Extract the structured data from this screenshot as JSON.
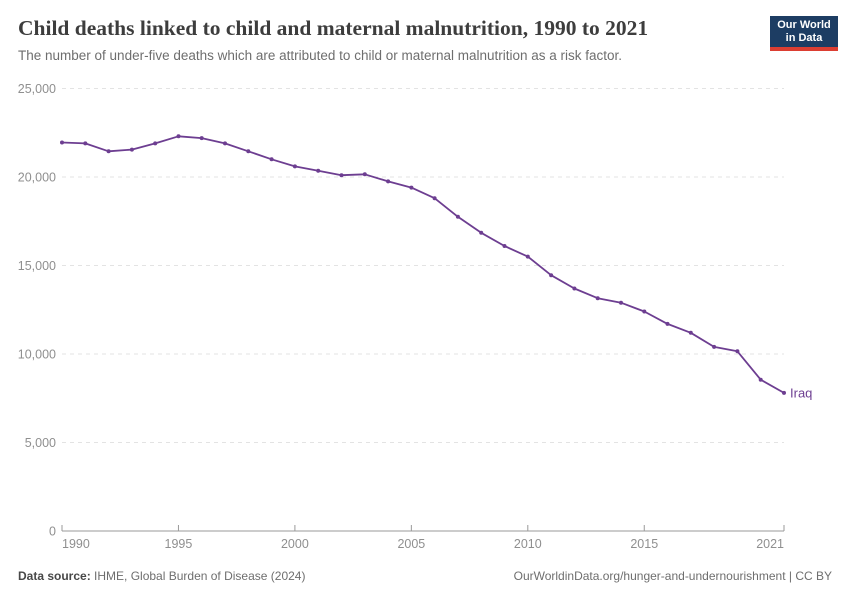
{
  "header": {
    "title": "Child deaths linked to child and maternal malnutrition, 1990 to 2021",
    "subtitle": "The number of under-five deaths which are attributed to child or maternal malnutrition as a risk factor.",
    "logo": {
      "line1": "Our World",
      "line2": "in Data",
      "bg_color": "#1d3d63",
      "stripe_color": "#dc3e32"
    }
  },
  "footer": {
    "source_label": "Data source:",
    "source_text": " IHME, Global Burden of Disease (2024)",
    "credit": "OurWorldinData.org/hunger-and-undernourishment | CC BY"
  },
  "chart_data": {
    "type": "line",
    "title": "Child deaths linked to child and maternal malnutrition, 1990 to 2021",
    "xlabel": "",
    "ylabel": "",
    "xlim": [
      1990,
      2021
    ],
    "ylim": [
      0,
      25000
    ],
    "grid": "horizontal-dashed",
    "legend": "line-end-label",
    "markers": true,
    "x": [
      1990,
      1991,
      1992,
      1993,
      1994,
      1995,
      1996,
      1997,
      1998,
      1999,
      2000,
      2001,
      2002,
      2003,
      2004,
      2005,
      2006,
      2007,
      2008,
      2009,
      2010,
      2011,
      2012,
      2013,
      2014,
      2015,
      2016,
      2017,
      2018,
      2019,
      2020,
      2021
    ],
    "series": [
      {
        "name": "Iraq",
        "color": "#6d3e91",
        "values": [
          21950,
          21900,
          21450,
          21550,
          21900,
          22300,
          22200,
          21900,
          21450,
          21000,
          20600,
          20350,
          20100,
          20150,
          19750,
          19400,
          18800,
          17750,
          16850,
          16100,
          15500,
          14450,
          13700,
          13150,
          12900,
          12400,
          11700,
          11200,
          10400,
          10150,
          8550,
          7800
        ]
      }
    ],
    "xticks": [
      {
        "value": 1990,
        "label": "1990"
      },
      {
        "value": 1995,
        "label": "1995"
      },
      {
        "value": 2000,
        "label": "2000"
      },
      {
        "value": 2005,
        "label": "2005"
      },
      {
        "value": 2010,
        "label": "2010"
      },
      {
        "value": 2015,
        "label": "2015"
      },
      {
        "value": 2021,
        "label": "2021"
      }
    ],
    "yticks": [
      {
        "value": 0,
        "label": "0"
      },
      {
        "value": 5000,
        "label": "5,000"
      },
      {
        "value": 10000,
        "label": "10,000"
      },
      {
        "value": 15000,
        "label": "15,000"
      },
      {
        "value": 20000,
        "label": "20,000"
      },
      {
        "value": 25000,
        "label": "25,000"
      }
    ],
    "colors": {
      "grid": "#e3e3e3",
      "axis": "#999999",
      "tick_text": "#8f8f8f"
    }
  }
}
